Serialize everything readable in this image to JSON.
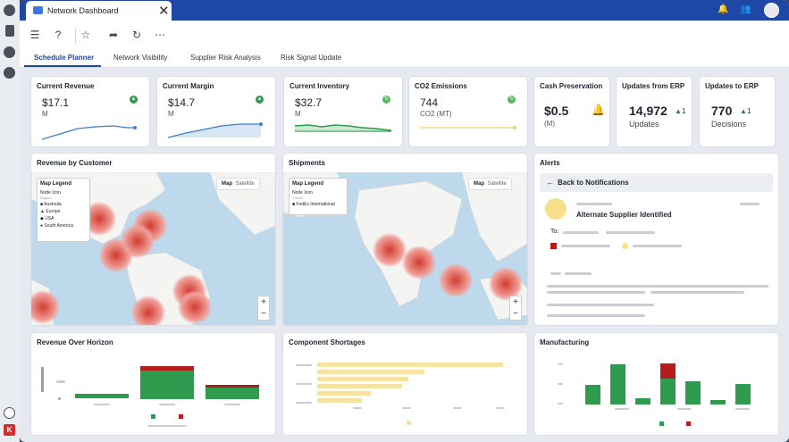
{
  "window": {
    "tab_title": "Network Dashboard"
  },
  "tabs": [
    "Schedule Planner",
    "Network Visibility",
    "Supplier Risk Analysis",
    "Risk Signal Update"
  ],
  "kpis": [
    {
      "title": "Current Revenue",
      "value": "$17.1",
      "unit": "M"
    },
    {
      "title": "Current Margin",
      "value": "$14.7",
      "unit": "M"
    },
    {
      "title": "Current Inventory",
      "value": "$32.7",
      "unit": "M"
    },
    {
      "title": "CO2 Emissions",
      "value": "744",
      "unit": "CO2 (MT)"
    },
    {
      "title": "Cash Preservation",
      "value": "$0.5",
      "unit": "(M)"
    },
    {
      "title": "Updates from ERP",
      "value": "14,972",
      "delta": "1",
      "unit": "Updates"
    },
    {
      "title": "Updates to ERP",
      "value": "770",
      "delta": "1",
      "unit": "Decisions"
    }
  ],
  "revenue_map": {
    "title": "Revenue by Customer",
    "legend_title": "Map Legend",
    "legend_sub": "Node Icon",
    "legend_sub2": "Region",
    "legend_items": [
      "Australia",
      "Europe",
      "USA",
      "South America"
    ],
    "toggle": [
      "Map",
      "Satellite"
    ]
  },
  "shipments_map": {
    "title": "Shipments",
    "legend_title": "Map Legend",
    "legend_sub": "Node Icon",
    "legend_sub2": "Carrier",
    "legend_items": [
      "FedEx International"
    ],
    "toggle": [
      "Map",
      "Satellite"
    ]
  },
  "alerts": {
    "title": "Alerts",
    "back": "Back to Notifications",
    "alert_title": "Alternate Supplier Identified",
    "to": "To:"
  },
  "bottom": {
    "revenue_title": "Revenue Over Horizon",
    "shortages_title": "Component Shortages",
    "manufacturing_title": "Manufacturing"
  },
  "colors": {
    "accent": "#1f47a6",
    "green": "#2e9b4e",
    "red": "#b71c1c",
    "yellow": "#f6e3a1"
  }
}
